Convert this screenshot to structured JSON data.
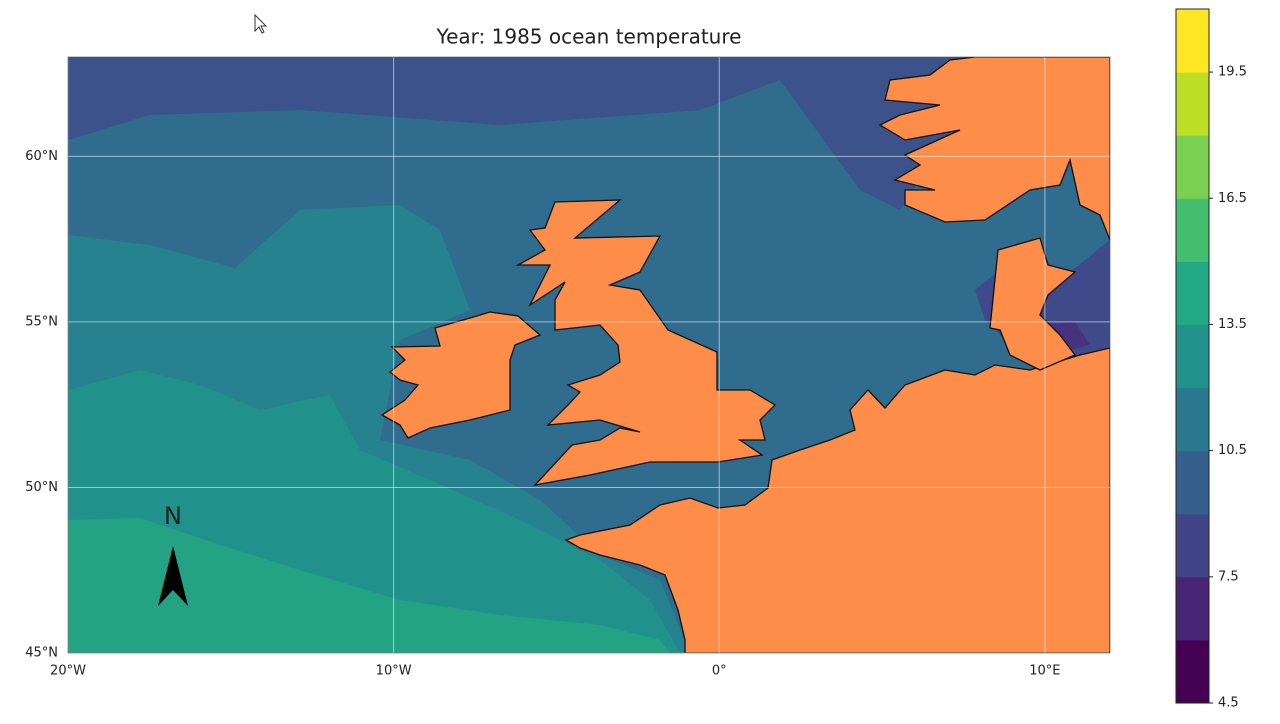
{
  "map": {
    "title": "Year: 1985 ocean temperature",
    "xlim": [
      -20,
      12
    ],
    "ylim": [
      45,
      63
    ],
    "xticks": [
      {
        "value": -20,
        "label": "20°W"
      },
      {
        "value": -10,
        "label": "10°W"
      },
      {
        "value": 0,
        "label": "0°"
      },
      {
        "value": 10,
        "label": "10°E"
      }
    ],
    "yticks": [
      {
        "value": 45,
        "label": "45°N"
      },
      {
        "value": 50,
        "label": "50°N"
      },
      {
        "value": 55,
        "label": "55°N"
      },
      {
        "value": 60,
        "label": "60°N"
      }
    ],
    "grid": true,
    "north_arrow": "N"
  },
  "colorbar": {
    "lim": [
      4.5,
      21
    ],
    "ticks": [
      4.5,
      7.5,
      10.5,
      13.5,
      16.5,
      19.5
    ],
    "colors": [
      "#440154",
      "#482475",
      "#414487",
      "#355f8d",
      "#2a788e",
      "#21918c",
      "#22a884",
      "#44bf70",
      "#7ad151",
      "#bddf26",
      "#fde725"
    ]
  }
}
